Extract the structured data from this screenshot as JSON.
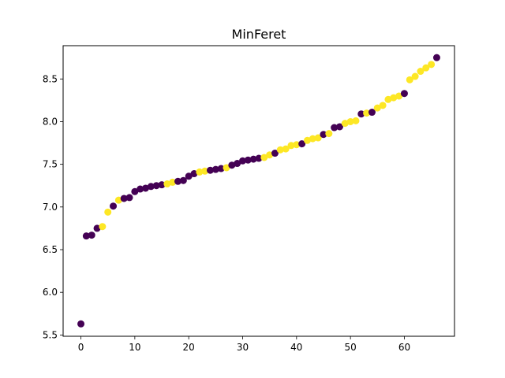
{
  "chart_data": {
    "type": "scatter",
    "title": "MinFeret",
    "xlabel": "",
    "ylabel": "",
    "xlim": [
      -3.3,
      69.3
    ],
    "ylim": [
      5.485,
      8.89
    ],
    "xticks": [
      0,
      10,
      20,
      30,
      40,
      50,
      60
    ],
    "yticks": [
      5.5,
      6.0,
      6.5,
      7.0,
      7.5,
      8.0,
      8.5
    ],
    "ytick_labels": [
      "5.5",
      "6.0",
      "6.5",
      "7.0",
      "7.5",
      "8.0",
      "8.5"
    ],
    "grid": false,
    "legend": "none",
    "colors": {
      "class_0": "#440154",
      "class_1": "#fde725"
    },
    "x": [
      0,
      1,
      2,
      3,
      4,
      5,
      6,
      7,
      8,
      9,
      10,
      11,
      12,
      13,
      14,
      15,
      16,
      17,
      18,
      19,
      20,
      21,
      22,
      23,
      24,
      25,
      26,
      27,
      28,
      29,
      30,
      31,
      32,
      33,
      34,
      35,
      36,
      37,
      38,
      39,
      40,
      41,
      42,
      43,
      44,
      45,
      46,
      47,
      48,
      49,
      50,
      51,
      52,
      53,
      54,
      55,
      56,
      57,
      58,
      59,
      60,
      61,
      62,
      63,
      64,
      65,
      66
    ],
    "y": [
      5.63,
      6.66,
      6.67,
      6.75,
      6.77,
      6.94,
      7.01,
      7.08,
      7.1,
      7.11,
      7.18,
      7.21,
      7.22,
      7.24,
      7.25,
      7.26,
      7.27,
      7.29,
      7.3,
      7.31,
      7.36,
      7.39,
      7.41,
      7.42,
      7.43,
      7.44,
      7.45,
      7.46,
      7.49,
      7.51,
      7.54,
      7.55,
      7.56,
      7.57,
      7.58,
      7.61,
      7.63,
      7.67,
      7.68,
      7.72,
      7.73,
      7.74,
      7.78,
      7.8,
      7.81,
      7.85,
      7.86,
      7.93,
      7.94,
      7.98,
      8.0,
      8.01,
      8.09,
      8.1,
      8.11,
      8.16,
      8.19,
      8.26,
      8.28,
      8.3,
      8.33,
      8.49,
      8.53,
      8.59,
      8.63,
      8.67,
      8.75
    ],
    "class": [
      0,
      0,
      0,
      0,
      1,
      1,
      0,
      1,
      0,
      0,
      0,
      0,
      0,
      0,
      0,
      0,
      1,
      1,
      0,
      0,
      0,
      0,
      1,
      1,
      0,
      0,
      0,
      1,
      0,
      0,
      0,
      0,
      0,
      0,
      1,
      1,
      0,
      1,
      1,
      1,
      1,
      0,
      1,
      1,
      1,
      0,
      1,
      0,
      0,
      1,
      1,
      1,
      0,
      1,
      0,
      1,
      1,
      1,
      1,
      1,
      0,
      1,
      1,
      1,
      1,
      1,
      0
    ]
  }
}
